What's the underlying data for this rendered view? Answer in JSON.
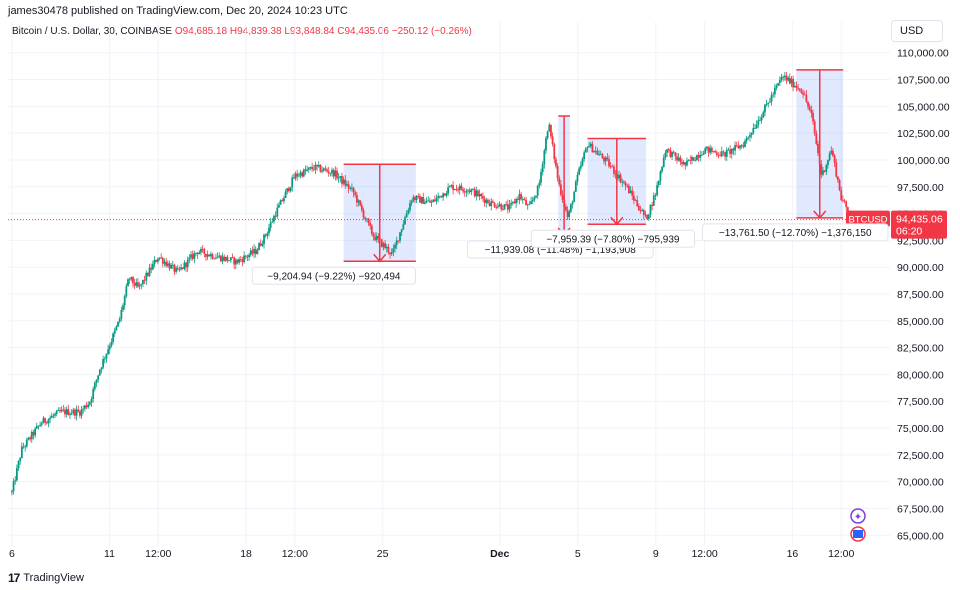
{
  "header": {
    "published": "james30478 published on TradingView.com, Dec 20, 2024 10:23 UTC",
    "symbol": "Bitcoin / U.S. Dollar, 30, COINBASE",
    "open": "O94,685.18",
    "high": "H94,839.38",
    "low": "L93,848.84",
    "close": "C94,435.06",
    "change": "−250.12 (−0.26%)"
  },
  "currency": "USD",
  "footer": {
    "brand": "TradingView"
  },
  "colors": {
    "up": "#089981",
    "down": "#f23645",
    "range": "#2962ff",
    "arrow": "#f23645"
  },
  "icons": [
    "sparkle-icon",
    "us-flag-icon"
  ],
  "chart_data": {
    "type": "candlestick",
    "title": "Bitcoin / U.S. Dollar, 30, COINBASE",
    "ylim": [
      64000,
      111000
    ],
    "y_ticks": [
      110000,
      107500,
      105000,
      102500,
      100000,
      97500,
      95000,
      92500,
      90000,
      87500,
      85000,
      82500,
      80000,
      77500,
      75000,
      72500,
      70000,
      67500,
      65000
    ],
    "y_tick_labels": [
      "110,000.00",
      "107,500.00",
      "105,000.00",
      "102,500.00",
      "100,000.00",
      "97,500.00",
      "95,000.00",
      "92,500.00",
      "90,000.00",
      "87,500.00",
      "85,000.00",
      "82,500.00",
      "80,000.00",
      "77,500.00",
      "75,000.00",
      "72,500.00",
      "70,000.00",
      "67,500.00",
      "65,000.00"
    ],
    "x_ticks": [
      {
        "label": "6",
        "day": 0
      },
      {
        "label": "11",
        "day": 5
      },
      {
        "label": "12:00",
        "day": 7.5
      },
      {
        "label": "18",
        "day": 12
      },
      {
        "label": "12:00",
        "day": 14.5
      },
      {
        "label": "25",
        "day": 19
      },
      {
        "label": "Dec",
        "day": 25
      },
      {
        "label": "5",
        "day": 29
      },
      {
        "label": "9",
        "day": 33
      },
      {
        "label": "12:00",
        "day": 35.5
      },
      {
        "label": "16",
        "day": 40
      },
      {
        "label": "12:00",
        "day": 42.5
      }
    ],
    "bold_ticks": [
      "Dec"
    ],
    "price_path": [
      [
        0,
        69000
      ],
      [
        0.5,
        73000
      ],
      [
        1.5,
        75500
      ],
      [
        2.5,
        76500
      ],
      [
        3.5,
        76500
      ],
      [
        4,
        77500
      ],
      [
        4.5,
        80500
      ],
      [
        5.5,
        85000
      ],
      [
        6,
        89000
      ],
      [
        6.5,
        88000
      ],
      [
        7.5,
        91000
      ],
      [
        8.5,
        89500
      ],
      [
        9.5,
        91500
      ],
      [
        10.5,
        91000
      ],
      [
        11.5,
        90500
      ],
      [
        12.5,
        91500
      ],
      [
        13,
        93000
      ],
      [
        13.5,
        95000
      ],
      [
        14.5,
        98500
      ],
      [
        15.5,
        99300
      ],
      [
        16.5,
        98800
      ],
      [
        17.5,
        97000
      ],
      [
        18.5,
        93000
      ],
      [
        19.5,
        91200
      ],
      [
        20.5,
        96500
      ],
      [
        21.5,
        96000
      ],
      [
        22.5,
        97500
      ],
      [
        23.5,
        97200
      ],
      [
        24.5,
        96000
      ],
      [
        25.5,
        95500
      ],
      [
        26,
        96700
      ],
      [
        26.5,
        95500
      ],
      [
        27,
        97500
      ],
      [
        27.5,
        103500
      ],
      [
        28,
        98000
      ],
      [
        28.5,
        94500
      ],
      [
        29,
        98500
      ],
      [
        29.5,
        101500
      ],
      [
        30.5,
        99800
      ],
      [
        31.5,
        97500
      ],
      [
        32.5,
        94500
      ],
      [
        33,
        97000
      ],
      [
        33.5,
        101000
      ],
      [
        34.5,
        99500
      ],
      [
        35.5,
        101000
      ],
      [
        36.5,
        100500
      ],
      [
        37.5,
        101500
      ],
      [
        38.5,
        104500
      ],
      [
        39.5,
        107800
      ],
      [
        40.5,
        106500
      ],
      [
        41,
        104000
      ],
      [
        41.5,
        98500
      ],
      [
        42,
        101000
      ],
      [
        42.5,
        96500
      ],
      [
        43,
        94500
      ]
    ],
    "last_price": "94,435.06",
    "last_value": 94435.06,
    "last_symbol": "BTCUSD",
    "countdown": "06:20",
    "measurements": [
      {
        "x0": 17.0,
        "x1": 20.7,
        "top": 99600,
        "bottom": 90550,
        "label": "−9,204.94 (−9.22%) −920,494",
        "labelDay": 16.5
      },
      {
        "x0": 28.0,
        "x1": 28.6,
        "top": 104100,
        "bottom": 93000,
        "label": "−11,939.08 (−11.48%) −1,193,908",
        "labelDay": 28.1
      },
      {
        "x0": 29.5,
        "x1": 32.5,
        "top": 102000,
        "bottom": 94000,
        "label": "−7,959.39 (−7.80%) −795,939",
        "labelDay": 30.8
      },
      {
        "x0": 40.2,
        "x1": 42.6,
        "top": 108400,
        "bottom": 94600,
        "label": "−13,761.50 (−12.70%) −1,376,150",
        "labelDay": 41.5
      }
    ]
  }
}
